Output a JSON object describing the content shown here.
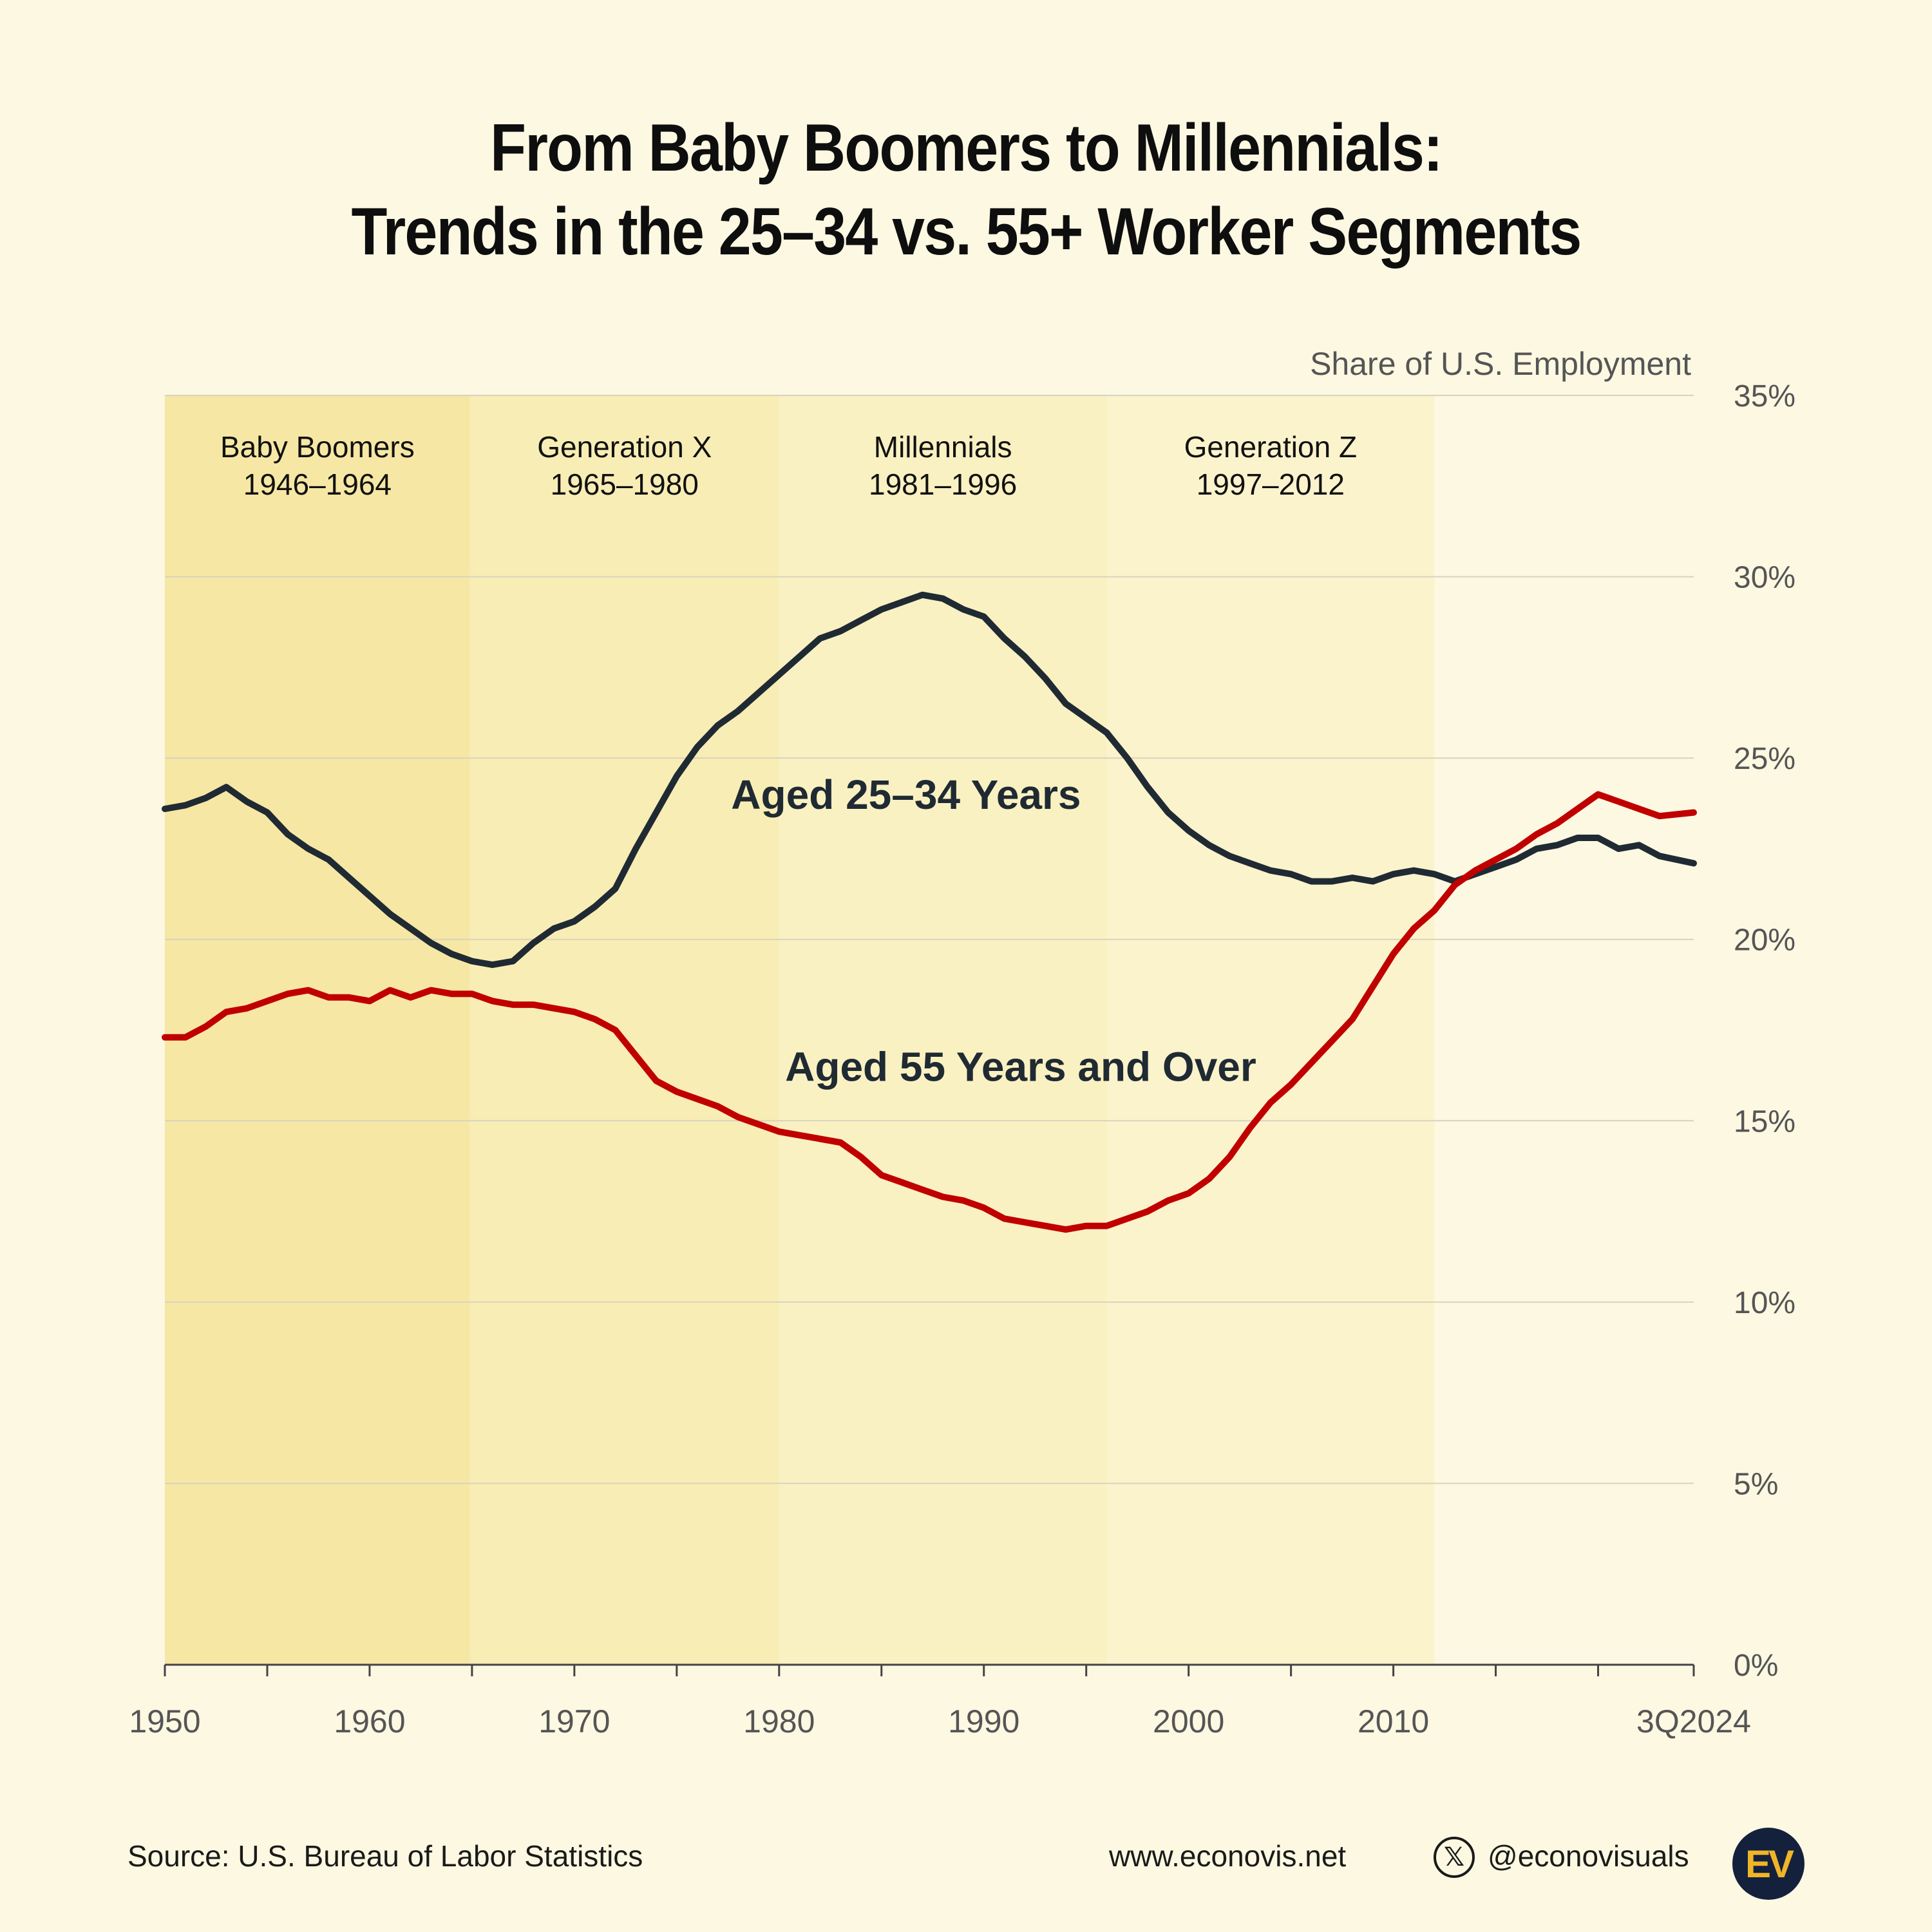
{
  "title": {
    "line1": "From Baby Boomers to Millennials:",
    "line2": "Trends in the 25–34 vs. 55+ Worker Segments"
  },
  "footer": {
    "source": "Source: U.S. Bureau of Labor Statistics",
    "website": "www.econovis.net",
    "handle": "@econovisuals",
    "x_icon": "x-logo-icon",
    "logo_text": "EV"
  },
  "colors": {
    "background": "#fdf8e2",
    "boomers_band": "#f6e7a4",
    "genx_band": "#f8edb4",
    "millennials_band": "#faf1c2",
    "genz_band": "#fbf3cc",
    "series_25_34": "#1f2a33",
    "series_55_over": "#c00000",
    "grid": "#d8d3bf"
  },
  "chart_data": {
    "type": "line",
    "ylabel": "Share of U.S. Employment",
    "xlim": [
      1950,
      2024.67
    ],
    "ylim": [
      0,
      35
    ],
    "y_ticks": [
      0,
      5,
      10,
      15,
      20,
      25,
      30,
      35
    ],
    "y_tick_labels": [
      "0%",
      "5%",
      "10%",
      "15%",
      "20%",
      "25%",
      "30%",
      "35%"
    ],
    "x_ticks": [
      1950,
      1960,
      1970,
      1980,
      1990,
      2000,
      2010,
      2024.67
    ],
    "x_tick_labels": [
      "1950",
      "1960",
      "1970",
      "1980",
      "1990",
      "2000",
      "2010",
      "3Q2024"
    ],
    "grid": true,
    "bands": [
      {
        "label": "Baby Boomers",
        "years": "1946–1964",
        "start": 1950,
        "end": 1964.9,
        "color": "#f6e7a4"
      },
      {
        "label": "Generation X",
        "years": "1965–1980",
        "start": 1964.9,
        "end": 1980,
        "color": "#f8edb4"
      },
      {
        "label": "Millennials",
        "years": "1981–1996",
        "start": 1980,
        "end": 1996,
        "color": "#faf1c2"
      },
      {
        "label": "Generation Z",
        "years": "1997–2012",
        "start": 1996,
        "end": 2012,
        "color": "#fbf3cc"
      }
    ],
    "series": [
      {
        "name": "Aged 25–34 Years",
        "color": "#1f2a33",
        "label_anchor": {
          "x": 1986.2,
          "y": 23.6
        },
        "x": [
          1950,
          1951,
          1952,
          1953,
          1954,
          1955,
          1956,
          1957,
          1958,
          1959,
          1960,
          1961,
          1962,
          1963,
          1964,
          1965,
          1966,
          1967,
          1968,
          1969,
          1970,
          1971,
          1972,
          1973,
          1974,
          1975,
          1976,
          1977,
          1978,
          1979,
          1980,
          1981,
          1982,
          1983,
          1984,
          1985,
          1986,
          1987,
          1988,
          1989,
          1990,
          1991,
          1992,
          1993,
          1994,
          1995,
          1996,
          1997,
          1998,
          1999,
          2000,
          2001,
          2002,
          2003,
          2004,
          2005,
          2006,
          2007,
          2008,
          2009,
          2010,
          2011,
          2012,
          2013,
          2014,
          2015,
          2016,
          2017,
          2018,
          2019,
          2020,
          2021,
          2022,
          2023,
          2024.67
        ],
        "y": [
          23.6,
          23.7,
          23.9,
          24.2,
          23.8,
          23.5,
          22.9,
          22.5,
          22.2,
          21.7,
          21.2,
          20.7,
          20.3,
          19.9,
          19.6,
          19.4,
          19.3,
          19.4,
          19.9,
          20.3,
          20.5,
          20.9,
          21.4,
          22.5,
          23.5,
          24.5,
          25.3,
          25.9,
          26.3,
          26.8,
          27.3,
          27.8,
          28.3,
          28.5,
          28.8,
          29.1,
          29.3,
          29.5,
          29.4,
          29.1,
          28.9,
          28.3,
          27.8,
          27.2,
          26.5,
          26.1,
          25.7,
          25.0,
          24.2,
          23.5,
          23.0,
          22.6,
          22.3,
          22.1,
          21.9,
          21.8,
          21.6,
          21.6,
          21.7,
          21.6,
          21.8,
          21.9,
          21.8,
          21.6,
          21.8,
          22.0,
          22.2,
          22.5,
          22.6,
          22.8,
          22.8,
          22.5,
          22.6,
          22.3,
          22.1
        ]
      },
      {
        "name": "Aged 55 Years and Over",
        "color": "#c00000",
        "label_anchor": {
          "x": 1991.8,
          "y": 16.1
        },
        "x": [
          1950,
          1951,
          1952,
          1953,
          1954,
          1955,
          1956,
          1957,
          1958,
          1959,
          1960,
          1961,
          1962,
          1963,
          1964,
          1965,
          1966,
          1967,
          1968,
          1969,
          1970,
          1971,
          1972,
          1973,
          1974,
          1975,
          1976,
          1977,
          1978,
          1979,
          1980,
          1981,
          1982,
          1983,
          1984,
          1985,
          1986,
          1987,
          1988,
          1989,
          1990,
          1991,
          1992,
          1993,
          1994,
          1995,
          1996,
          1997,
          1998,
          1999,
          2000,
          2001,
          2002,
          2003,
          2004,
          2005,
          2006,
          2007,
          2008,
          2009,
          2010,
          2011,
          2012,
          2013,
          2014,
          2015,
          2016,
          2017,
          2018,
          2019,
          2020,
          2021,
          2022,
          2023,
          2024.67
        ],
        "y": [
          17.3,
          17.3,
          17.6,
          18.0,
          18.1,
          18.3,
          18.5,
          18.6,
          18.4,
          18.4,
          18.3,
          18.6,
          18.4,
          18.6,
          18.5,
          18.5,
          18.3,
          18.2,
          18.2,
          18.1,
          18.0,
          17.8,
          17.5,
          16.8,
          16.1,
          15.8,
          15.6,
          15.4,
          15.1,
          14.9,
          14.7,
          14.6,
          14.5,
          14.4,
          14.0,
          13.5,
          13.3,
          13.1,
          12.9,
          12.8,
          12.6,
          12.3,
          12.2,
          12.1,
          12.0,
          12.1,
          12.1,
          12.3,
          12.5,
          12.8,
          13.0,
          13.4,
          14.0,
          14.8,
          15.5,
          16.0,
          16.6,
          17.2,
          17.8,
          18.7,
          19.6,
          20.3,
          20.8,
          21.5,
          21.9,
          22.2,
          22.5,
          22.9,
          23.2,
          23.6,
          24.0,
          23.8,
          23.6,
          23.4,
          23.5
        ]
      }
    ]
  }
}
